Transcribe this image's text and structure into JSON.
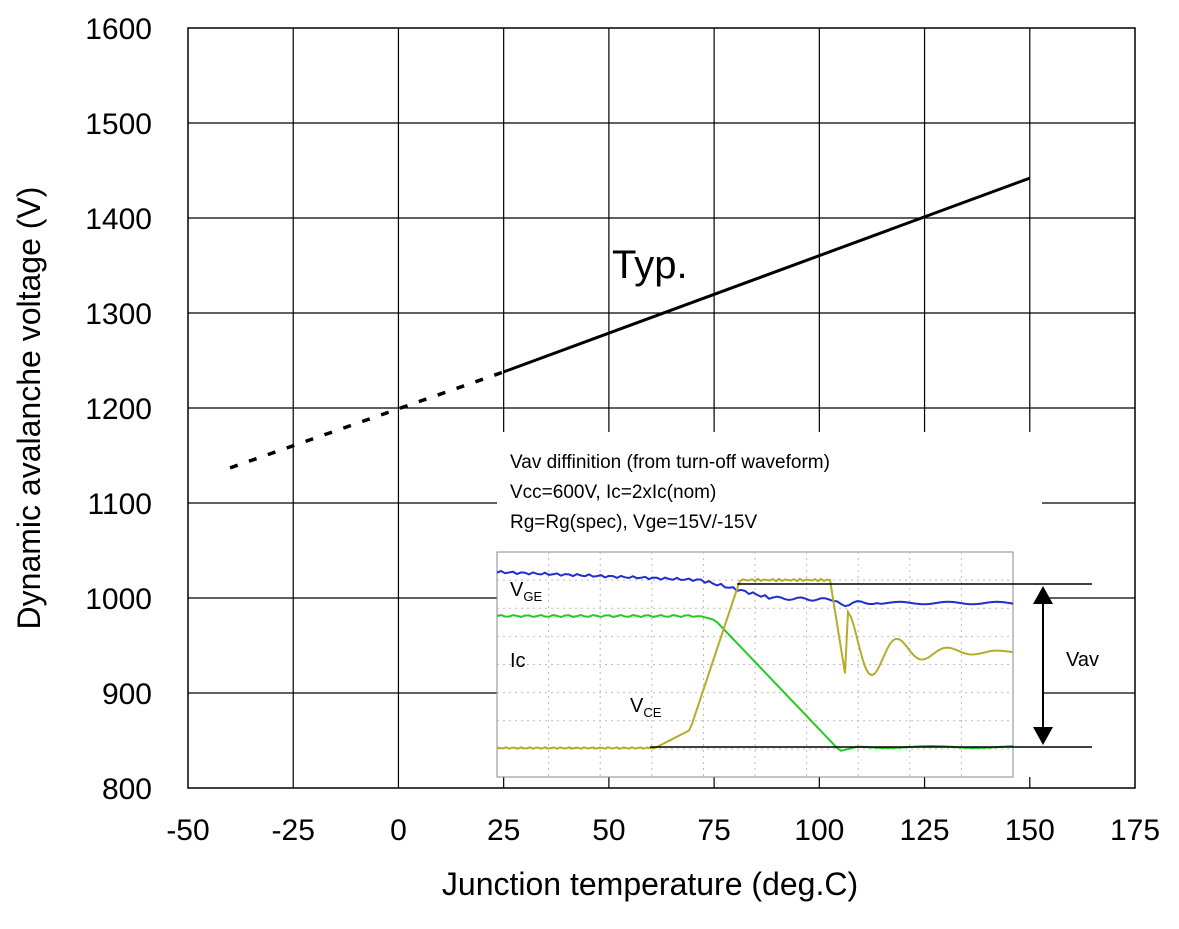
{
  "chart_data": {
    "type": "line",
    "xlabel": "Junction temperature (deg.C)",
    "ylabel": "Dynamic avalanche voltage (V)",
    "xlim": [
      -50,
      175
    ],
    "ylim": [
      800,
      1600
    ],
    "x_ticks": [
      "-50",
      "-25",
      "0",
      "25",
      "50",
      "75",
      "100",
      "125",
      "150",
      "175"
    ],
    "y_ticks": [
      "1600",
      "1500",
      "1400",
      "1300",
      "1200",
      "1100",
      "1000",
      "900",
      "800"
    ],
    "grid": true,
    "series": [
      {
        "name": "Typ.",
        "solid_segment": {
          "x": [
            25,
            150
          ],
          "y": [
            1238,
            1442
          ]
        },
        "dashed_segment": {
          "x": [
            -40,
            25
          ],
          "y": [
            1137,
            1238
          ]
        }
      }
    ],
    "annotations": {
      "typ_label": "Typ.",
      "inset_title": "Vav diffinition (from turn-off waveform)",
      "inset_line2": "Vcc=600V, Ic=2xIc(nom)",
      "inset_line3": "Rg=Rg(spec), Vge=15V/-15V",
      "vge_label_main": "V",
      "vge_label_sub": "GE",
      "ic_label": "Ic",
      "vce_label_main": "V",
      "vce_label_sub": "CE",
      "vav_label": "Vav"
    },
    "colors": {
      "vge_trace": "#1f2ecc",
      "ic_trace": "#22cc22",
      "vce_trace": "#b5ad2a",
      "main_line": "#000000"
    }
  }
}
